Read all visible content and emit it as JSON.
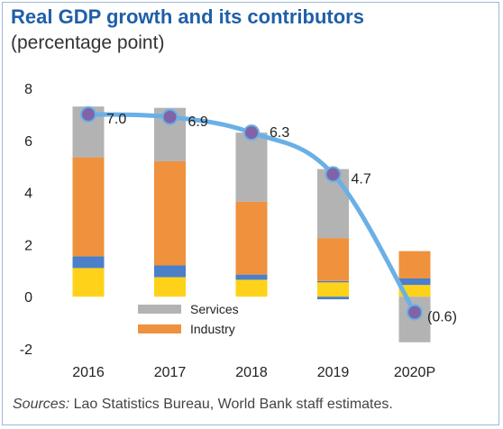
{
  "header": {
    "title": "Real GDP growth and its contributors",
    "subtitle": "(percentage point)"
  },
  "footer": {
    "source_label": "Sources:",
    "source_text": " Lao Statistics Bureau, World Bank staff estimates."
  },
  "colors": {
    "title": "#1f5fa8",
    "services": "#b3b3b3",
    "industry": "#f0913e",
    "blue_segment": "#4a7fc9",
    "yellow_segment": "#ffd21a",
    "growth_line": "#6ab0e6",
    "marker_fill": "#8064a8"
  },
  "chart_data": {
    "type": "bar",
    "categories": [
      "2016",
      "2017",
      "2018",
      "2019",
      "2020P"
    ],
    "ylim": [
      -2,
      8
    ],
    "yticks": [
      -2,
      0,
      2,
      4,
      6,
      8
    ],
    "stacked": true,
    "series": [
      {
        "name": "",
        "color_key": "yellow_segment",
        "values": [
          1.1,
          0.75,
          0.65,
          0.55,
          0.45
        ]
      },
      {
        "name": "",
        "color_key": "blue_segment",
        "values": [
          0.45,
          0.45,
          0.2,
          0.05,
          0.25
        ]
      },
      {
        "name": "Industry",
        "color_key": "industry",
        "values": [
          3.8,
          4.0,
          2.8,
          1.65,
          1.05
        ]
      },
      {
        "name": "Services",
        "color_key": "services",
        "values": [
          1.95,
          2.05,
          2.65,
          2.65,
          -1.75
        ]
      },
      {
        "name": "",
        "color_key": "blue_segment",
        "values": [
          0,
          0,
          0,
          -0.1,
          0
        ]
      }
    ],
    "growth_line": {
      "values": [
        7.0,
        6.9,
        6.3,
        4.7,
        -0.6
      ],
      "labels": [
        "7.0",
        "6.9",
        "6.3",
        "4.7",
        "(0.6)"
      ]
    },
    "legend": [
      "Services",
      "Industry"
    ],
    "legend_position": "bottom-left inside plot",
    "grid": false
  }
}
